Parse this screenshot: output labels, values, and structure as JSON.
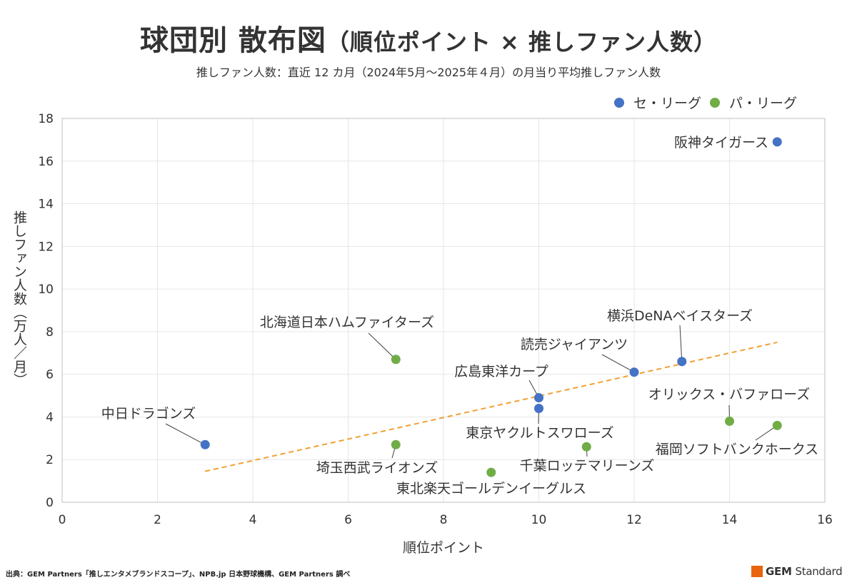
{
  "title": {
    "main": "球団別 散布図",
    "paren": "（順位ポイント × 推しファン人数）"
  },
  "subtitle": "推しファン人数：直近 12 カ月（2024年5月～2025年４月）の月当り平均推しファン人数",
  "source": "出典：GEM Partners「推しエンタメブランドスコープ」、NPB.jp 日本野球機構、GEM Partners 調べ",
  "brand": {
    "first": "GEM",
    "second": "Standard",
    "color": "#e8650f"
  },
  "chart_data": {
    "type": "scatter",
    "xlabel": "順位ポイント",
    "ylabel": "推しファン人数（万人／月）",
    "xlim": [
      0,
      16
    ],
    "ylim": [
      0,
      18
    ],
    "xticks": [
      0,
      2,
      4,
      6,
      8,
      10,
      12,
      14,
      16
    ],
    "yticks": [
      0,
      2,
      4,
      6,
      8,
      10,
      12,
      14,
      16,
      18
    ],
    "grid": true,
    "legend_position": "top-right",
    "series": [
      {
        "name": "セ・リーグ",
        "color": "#4472c4",
        "points": [
          {
            "label": "阪神タイガース",
            "x": 15,
            "y": 16.9
          },
          {
            "label": "横浜DeNAベイスターズ",
            "x": 13,
            "y": 6.6
          },
          {
            "label": "読売ジャイアンツ",
            "x": 12,
            "y": 6.1
          },
          {
            "label": "広島東洋カープ",
            "x": 10,
            "y": 4.9
          },
          {
            "label": "東京ヤクルトスワローズ",
            "x": 10,
            "y": 4.4
          },
          {
            "label": "中日ドラゴンズ",
            "x": 3,
            "y": 2.7
          }
        ]
      },
      {
        "name": "パ・リーグ",
        "color": "#70ad47",
        "points": [
          {
            "label": "北海道日本ハムファイターズ",
            "x": 7,
            "y": 6.7
          },
          {
            "label": "オリックス・バファローズ",
            "x": 14,
            "y": 3.8
          },
          {
            "label": "福岡ソフトバンクホークス",
            "x": 15,
            "y": 3.6
          },
          {
            "label": "埼玉西武ライオンズ",
            "x": 7,
            "y": 2.7
          },
          {
            "label": "千葉ロッテマリーンズ",
            "x": 11,
            "y": 2.6
          },
          {
            "label": "東北楽天ゴールデンイーグルス",
            "x": 9,
            "y": 1.4
          }
        ]
      }
    ],
    "trendline": {
      "style": "dashed",
      "color": "#f0a030",
      "x": [
        3,
        15
      ],
      "y": [
        1.45,
        7.5
      ]
    }
  }
}
